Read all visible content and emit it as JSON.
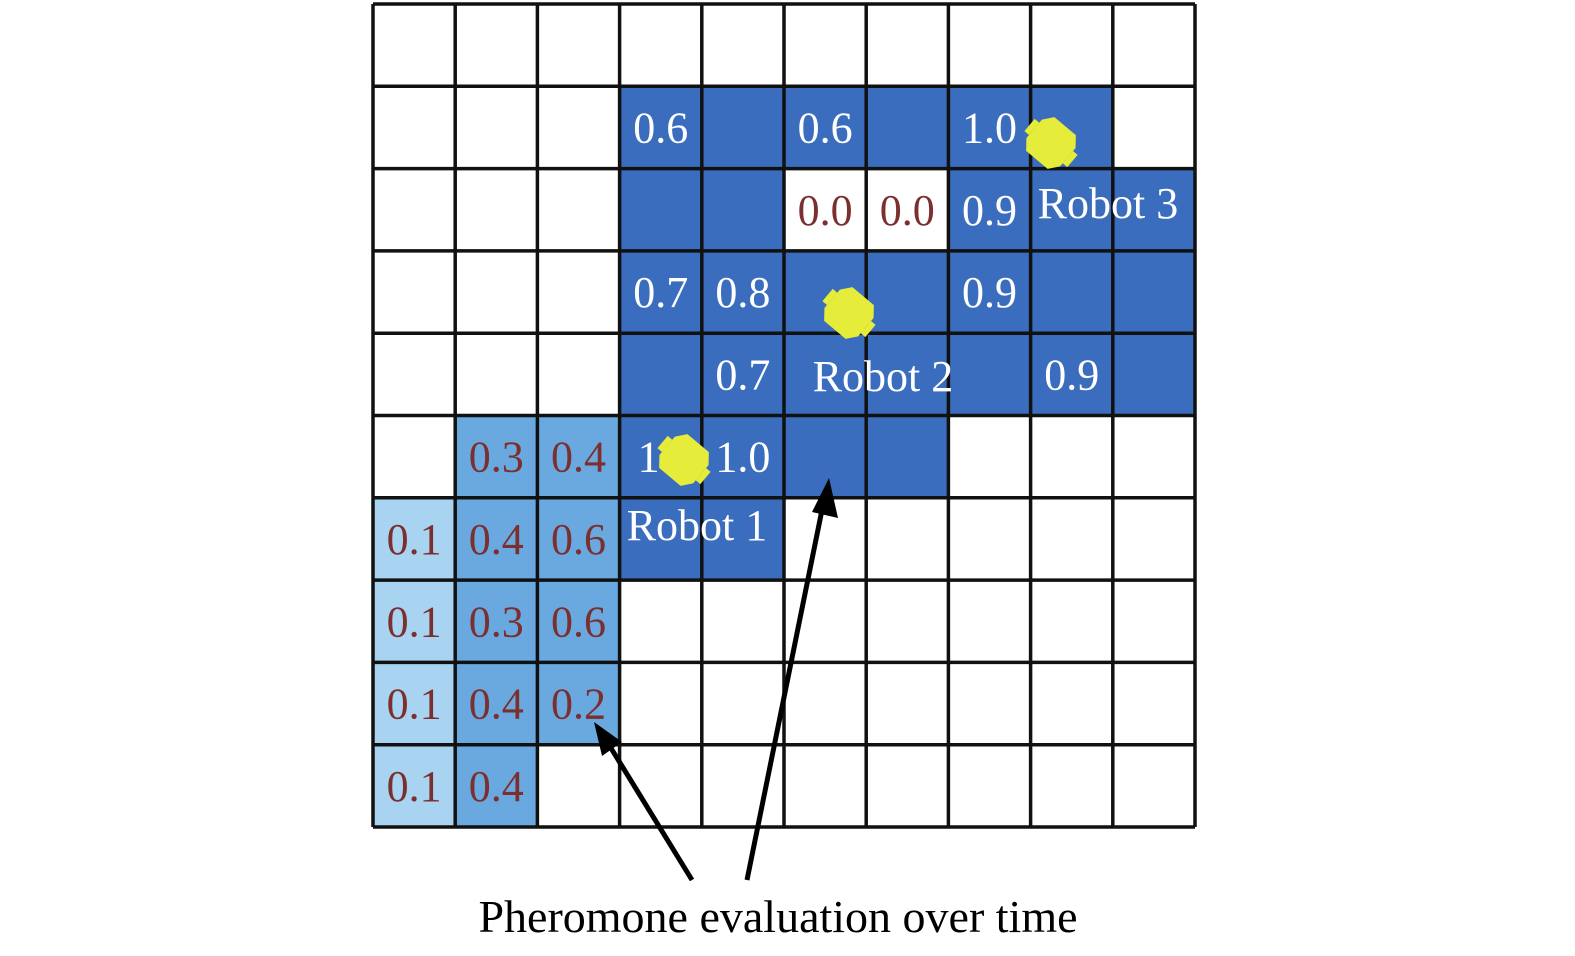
{
  "colors": {
    "dark": "#3a6dbd",
    "medium": "#6aa9e0",
    "light": "#a8d4f2",
    "white": "#ffffff",
    "text_on_dark": "#ffffff",
    "text_on_light": "#7b2f2f",
    "robot": "#e6ec3a",
    "grid_line": "#111111"
  },
  "grid": {
    "rows": 10,
    "cols": 10,
    "fill_rows": [
      [
        "w",
        "w",
        "w",
        "w",
        "w",
        "w",
        "w",
        "w",
        "w",
        "w"
      ],
      [
        "w",
        "w",
        "w",
        "d",
        "d",
        "d",
        "d",
        "d",
        "d",
        "w"
      ],
      [
        "w",
        "w",
        "w",
        "d",
        "d",
        "w",
        "w",
        "d",
        "d",
        "d"
      ],
      [
        "w",
        "w",
        "w",
        "d",
        "d",
        "d",
        "d",
        "d",
        "d",
        "d"
      ],
      [
        "w",
        "w",
        "w",
        "d",
        "d",
        "d",
        "d",
        "d",
        "d",
        "d"
      ],
      [
        "w",
        "m",
        "m",
        "d",
        "d",
        "d",
        "d",
        "w",
        "w",
        "w"
      ],
      [
        "l",
        "m",
        "m",
        "d",
        "d",
        "w",
        "w",
        "w",
        "w",
        "w"
      ],
      [
        "l",
        "m",
        "m",
        "w",
        "w",
        "w",
        "w",
        "w",
        "w",
        "w"
      ],
      [
        "l",
        "m",
        "m",
        "w",
        "w",
        "w",
        "w",
        "w",
        "w",
        "w"
      ],
      [
        "l",
        "m",
        "w",
        "w",
        "w",
        "w",
        "w",
        "w",
        "w",
        "w"
      ]
    ],
    "values": [
      {
        "row": 1,
        "col": 3,
        "text": "0.6"
      },
      {
        "row": 1,
        "col": 5,
        "text": "0.6"
      },
      {
        "row": 1,
        "col": 7,
        "text": "1.0"
      },
      {
        "row": 2,
        "col": 5,
        "text": "0.0"
      },
      {
        "row": 2,
        "col": 6,
        "text": "0.0"
      },
      {
        "row": 2,
        "col": 7,
        "text": "0.9"
      },
      {
        "row": 3,
        "col": 3,
        "text": "0.7"
      },
      {
        "row": 3,
        "col": 4,
        "text": "0.8"
      },
      {
        "row": 3,
        "col": 7,
        "text": "0.9"
      },
      {
        "row": 4,
        "col": 4,
        "text": "0.7"
      },
      {
        "row": 4,
        "col": 8,
        "text": "0.9"
      },
      {
        "row": 5,
        "col": 1,
        "text": "0.3"
      },
      {
        "row": 5,
        "col": 2,
        "text": "0.4"
      },
      {
        "row": 5,
        "col": 3,
        "text": "1"
      },
      {
        "row": 5,
        "col": 4,
        "text": "1.0"
      },
      {
        "row": 6,
        "col": 0,
        "text": "0.1"
      },
      {
        "row": 6,
        "col": 1,
        "text": "0.4"
      },
      {
        "row": 6,
        "col": 2,
        "text": "0.6"
      },
      {
        "row": 7,
        "col": 0,
        "text": "0.1"
      },
      {
        "row": 7,
        "col": 1,
        "text": "0.3"
      },
      {
        "row": 7,
        "col": 2,
        "text": "0.6"
      },
      {
        "row": 8,
        "col": 0,
        "text": "0.1"
      },
      {
        "row": 8,
        "col": 1,
        "text": "0.4"
      },
      {
        "row": 8,
        "col": 2,
        "text": "0.2"
      },
      {
        "row": 9,
        "col": 0,
        "text": "0.1"
      },
      {
        "row": 9,
        "col": 1,
        "text": "0.4"
      }
    ]
  },
  "robots": [
    {
      "label": "Robot 1"
    },
    {
      "label": "Robot 2"
    },
    {
      "label": "Robot 3"
    }
  ],
  "caption": "Pheromone evaluation over time"
}
